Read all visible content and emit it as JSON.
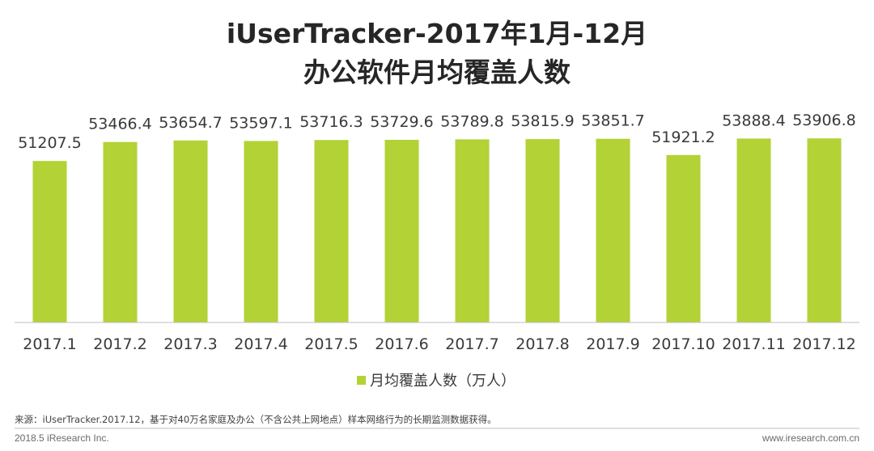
{
  "chart_data": {
    "type": "bar",
    "title_line1": "iUserTracker-2017年1月-12月",
    "title_line2": "办公软件月均覆盖人数",
    "categories": [
      "2017.1",
      "2017.2",
      "2017.3",
      "2017.4",
      "2017.5",
      "2017.6",
      "2017.7",
      "2017.8",
      "2017.9",
      "2017.10",
      "2017.11",
      "2017.12"
    ],
    "series": [
      {
        "name": "月均覆盖人数（万人）",
        "values": [
          51207.5,
          53466.4,
          53654.7,
          53597.1,
          53716.3,
          53729.6,
          53789.8,
          53815.9,
          53851.7,
          51921.2,
          53888.4,
          53906.8
        ]
      }
    ],
    "ylim": [
      32000,
      54500
    ],
    "grid": false,
    "legend_position": "bottom-center",
    "bar_color": "#b2d235"
  },
  "source_note": "来源：iUserTracker.2017.12，基于对40万名家庭及办公（不含公共上网地点）样本网络行为的长期监测数据获得。",
  "footer": {
    "left": "2018.5 iResearch Inc.",
    "right": "www.iresearch.com.cn"
  }
}
